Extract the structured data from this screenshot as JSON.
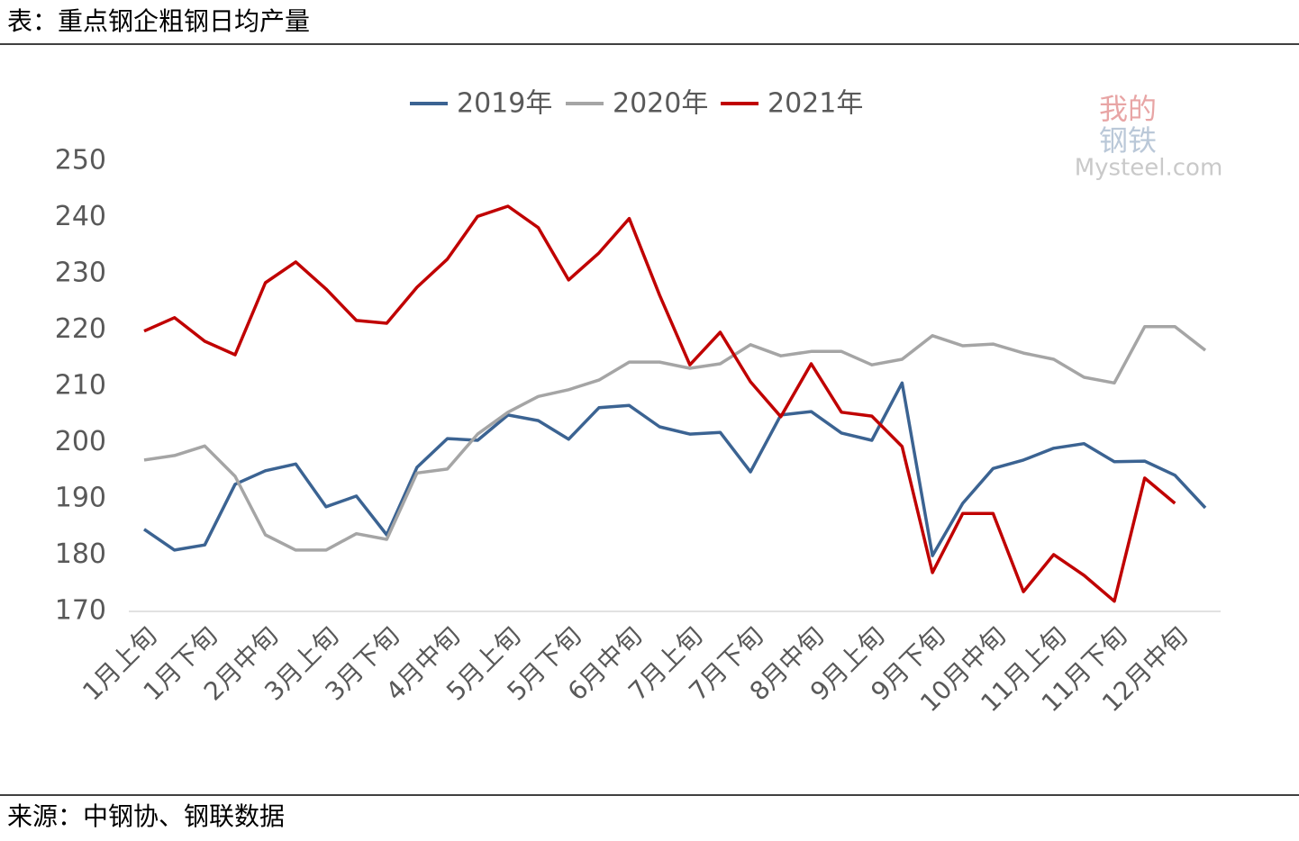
{
  "chart_data": {
    "type": "line",
    "title": "表：重点钢企粗钢日均产量",
    "source": "来源：中钢协、钢联数据",
    "watermark": {
      "top": "我的",
      "middle": "钢铁",
      "bottom": "Mysteel.com"
    },
    "categories": [
      "1月上旬",
      null,
      "1月下旬",
      null,
      "2月中旬",
      null,
      "3月上旬",
      null,
      "3月下旬",
      null,
      "4月中旬",
      null,
      "5月上旬",
      null,
      "5月下旬",
      null,
      "6月中旬",
      null,
      "7月上旬",
      null,
      "7月下旬",
      null,
      "8月中旬",
      null,
      "9月上旬",
      null,
      "9月下旬",
      null,
      "10月中旬",
      null,
      "11月上旬",
      null,
      "11月下旬",
      null,
      "12月中旬",
      null
    ],
    "series": [
      {
        "name": "2019年",
        "color": "#3b6392",
        "values": [
          184.6,
          180.9,
          181.8,
          192.6,
          195.0,
          196.2,
          188.6,
          190.5,
          183.6,
          195.6,
          200.7,
          200.4,
          204.9,
          203.9,
          200.6,
          206.2,
          206.6,
          202.8,
          201.5,
          201.8,
          194.8,
          204.9,
          205.5,
          201.7,
          200.4,
          210.6,
          179.9,
          189.2,
          195.4,
          196.9,
          199.0,
          199.8,
          196.6,
          196.7,
          194.2,
          188.4
        ]
      },
      {
        "name": "2020年",
        "color": "#a5a5a5",
        "values": [
          196.9,
          197.7,
          199.4,
          194.0,
          183.6,
          180.9,
          180.9,
          183.8,
          182.8,
          194.6,
          195.3,
          201.5,
          205.4,
          208.2,
          209.4,
          211.1,
          214.3,
          214.3,
          213.2,
          214.0,
          217.4,
          215.4,
          216.2,
          216.2,
          213.8,
          214.8,
          219.0,
          217.2,
          217.5,
          215.9,
          214.8,
          211.6,
          210.6,
          220.6,
          220.6,
          216.4
        ]
      },
      {
        "name": "2021年",
        "color": "#c00000",
        "values": [
          219.8,
          222.2,
          218.0,
          215.6,
          228.4,
          232.1,
          227.3,
          221.7,
          221.2,
          227.6,
          232.6,
          240.2,
          242.0,
          238.2,
          228.9,
          233.7,
          239.8,
          226.2,
          213.8,
          219.6,
          210.8,
          204.6,
          214.0,
          205.4,
          204.7,
          199.3,
          176.9,
          187.4,
          187.4,
          173.5,
          180.1,
          176.4,
          171.8,
          193.7,
          189.2,
          null
        ]
      }
    ],
    "ylim": [
      170,
      250
    ],
    "yticks": [
      170,
      180,
      190,
      200,
      210,
      220,
      230,
      240,
      250
    ],
    "grid": false,
    "legend": "top"
  }
}
